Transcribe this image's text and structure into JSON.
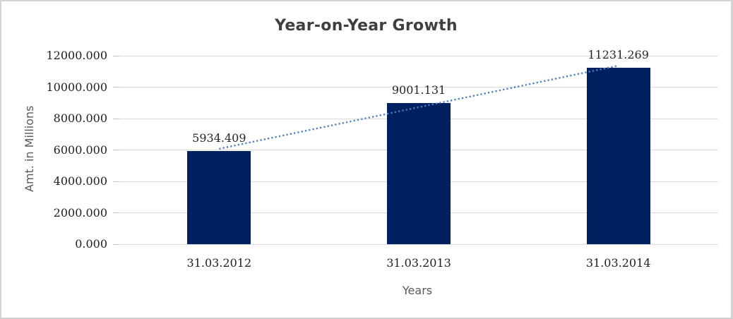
{
  "window": {
    "background": "#ffffff",
    "border_color": "#d4d4d4"
  },
  "chart_data": {
    "type": "bar",
    "title": "Year-on-Year Growth",
    "xlabel": "Years",
    "ylabel": "Amt. in Millions",
    "categories": [
      "31.03.2012",
      "31.03.2013",
      "31.03.2014"
    ],
    "values": [
      5934.409,
      9001.131,
      11231.269
    ],
    "data_labels": [
      "5934.409",
      "9001.131",
      "11231.269"
    ],
    "ylim": [
      0,
      12000
    ],
    "ytick_step": 2000,
    "ytick_labels": [
      "0.000",
      "2000.000",
      "4000.000",
      "6000.000",
      "8000.000",
      "10000.000",
      "12000.000"
    ],
    "grid": true,
    "legend": "none",
    "trendline": {
      "type": "linear",
      "style": "dotted"
    },
    "colors": {
      "bar": "#002060",
      "trendline": "#4d7ebf",
      "gridline": "#d9d9d9",
      "tick_mark": "#c3c3c3",
      "title_text": "#3f3f3f",
      "tick_text": "#1f1f1f",
      "axis_title_text": "#595959"
    }
  }
}
